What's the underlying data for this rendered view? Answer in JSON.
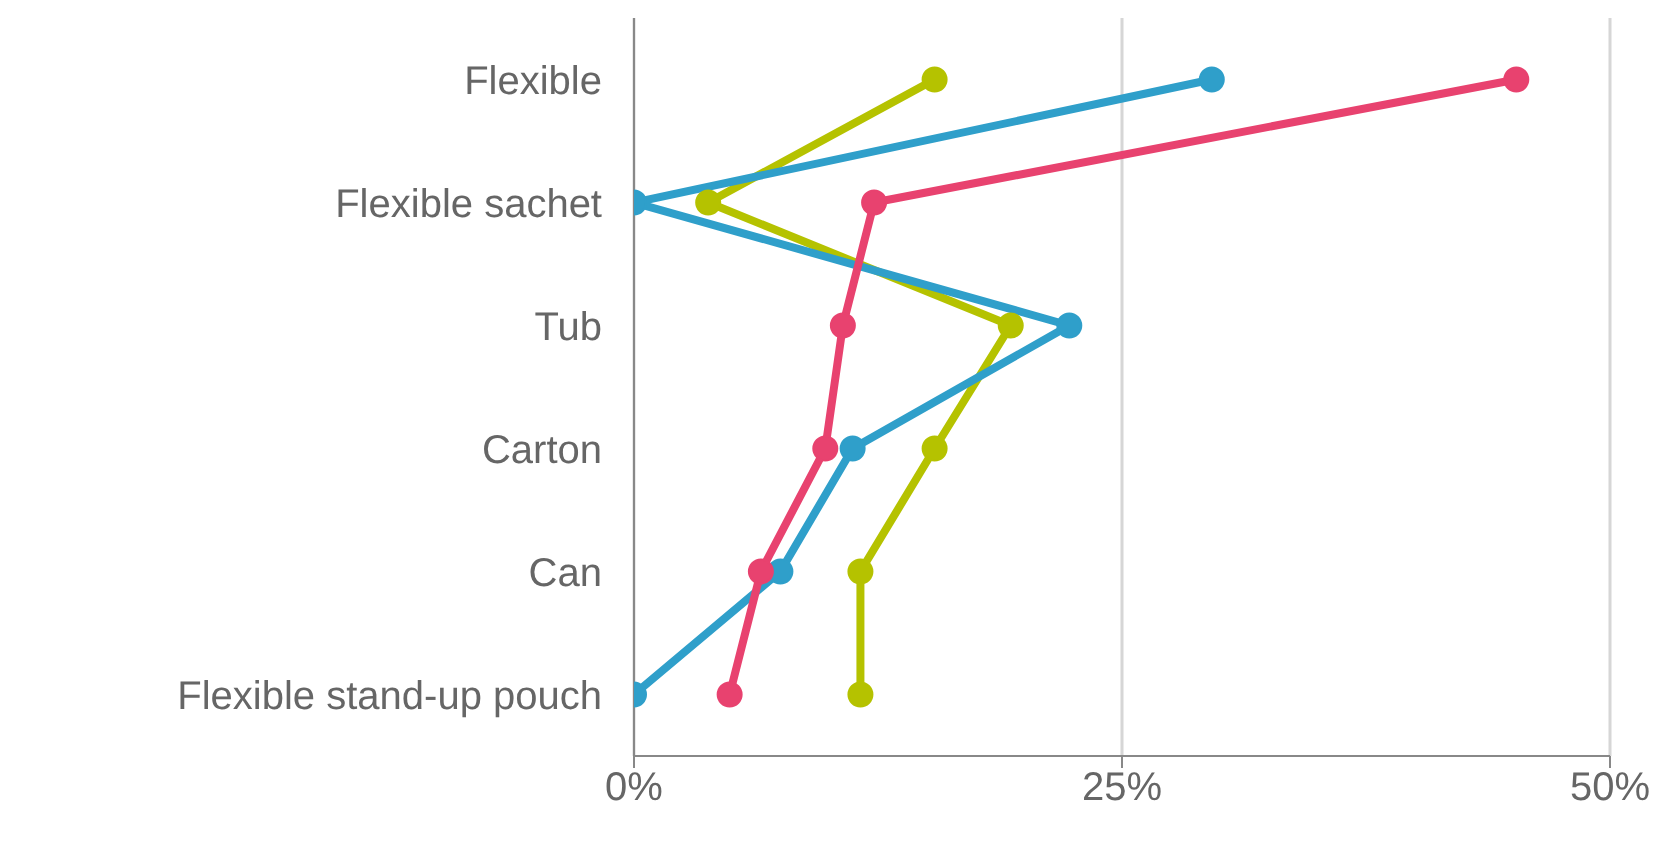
{
  "chart_data": {
    "type": "line",
    "orientation": "horizontal",
    "categories": [
      "Flexible",
      "Flexible sachet",
      "Tub",
      "Carton",
      "Can",
      "Flexible stand-up pouch"
    ],
    "series": [
      {
        "color": "#b5c200",
        "values": [
          15.4,
          3.8,
          19.3,
          15.4,
          11.6,
          11.6
        ]
      },
      {
        "color": "#2f9fca",
        "values": [
          29.6,
          0,
          22.3,
          11.2,
          7.5,
          0
        ]
      },
      {
        "color": "#e8426f",
        "values": [
          45.2,
          12.3,
          10.7,
          9.8,
          6.5,
          4.9
        ]
      }
    ],
    "xlim": [
      0,
      50
    ],
    "xticks": [
      {
        "value": 0,
        "label": "0%"
      },
      {
        "value": 25,
        "label": "25%"
      },
      {
        "value": 50,
        "label": "50%"
      }
    ],
    "grid": "x",
    "marker": "circle",
    "line_style": "solid"
  }
}
